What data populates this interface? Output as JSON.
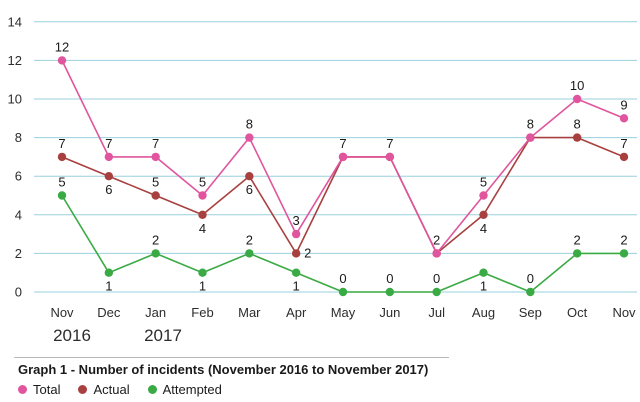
{
  "chart_data": {
    "type": "line",
    "title": "Graph 1 - Number of incidents (November 2016 to November 2017)",
    "categories": [
      "Nov",
      "Dec",
      "Jan",
      "Feb",
      "Mar",
      "Apr",
      "May",
      "Jun",
      "Jul",
      "Aug",
      "Sep",
      "Oct",
      "Nov"
    ],
    "year_labels": [
      "2016",
      "2017"
    ],
    "y_ticks": [
      0,
      2,
      4,
      6,
      8,
      10,
      12,
      14
    ],
    "ylim": [
      0,
      14
    ],
    "grid": "horizontal",
    "legend_position": "bottom-left",
    "series": [
      {
        "name": "Total",
        "color": "#e0559d",
        "values": [
          12,
          7,
          7,
          5,
          8,
          3,
          7,
          7,
          2,
          5,
          8,
          10,
          9
        ]
      },
      {
        "name": "Actual",
        "color": "#a94040",
        "values": [
          7,
          6,
          5,
          4,
          6,
          2,
          7,
          7,
          2,
          4,
          8,
          8,
          7
        ]
      },
      {
        "name": "Attempted",
        "color": "#3aaa45",
        "values": [
          5,
          1,
          2,
          1,
          2,
          1,
          0,
          0,
          0,
          1,
          0,
          2,
          2
        ]
      }
    ]
  },
  "gridline_color": "#9ad0de"
}
